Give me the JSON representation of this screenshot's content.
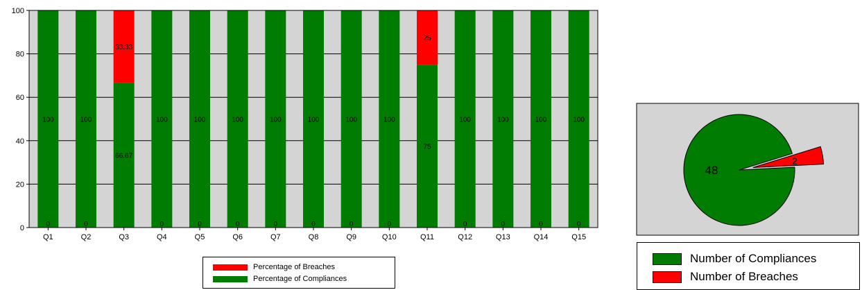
{
  "chart_data": [
    {
      "type": "bar",
      "stacked": true,
      "categories": [
        "Q1",
        "Q2",
        "Q3",
        "Q4",
        "Q5",
        "Q6",
        "Q7",
        "Q8",
        "Q9",
        "Q10",
        "Q11",
        "Q12",
        "Q13",
        "Q14",
        "Q15"
      ],
      "series": [
        {
          "name": "Percentage of Compliances",
          "color": "#007d00",
          "values": [
            100,
            100,
            66.67,
            100,
            100,
            100,
            100,
            100,
            100,
            100,
            75,
            100,
            100,
            100,
            100
          ]
        },
        {
          "name": "Percentage of Breaches",
          "color": "#ff0000",
          "values": [
            0,
            0,
            33.33,
            0,
            0,
            0,
            0,
            0,
            0,
            0,
            25,
            0,
            0,
            0,
            0
          ]
        }
      ],
      "data_labels": {
        "compliances": [
          "100",
          "100",
          "66.67",
          "100",
          "100",
          "100",
          "100",
          "100",
          "100",
          "100",
          "75",
          "100",
          "100",
          "100",
          "100"
        ],
        "breaches": [
          "0",
          "0",
          "33.33",
          "0",
          "0",
          "0",
          "0",
          "0",
          "0",
          "0",
          "25",
          "0",
          "0",
          "0",
          "0"
        ]
      },
      "ylim": [
        0,
        100
      ],
      "yticks": [
        "0",
        "20",
        "40",
        "60",
        "80",
        "100"
      ],
      "grid": true,
      "plot_background": "#d4d4d4",
      "legend": {
        "placement": "bottom-center",
        "entries": [
          "Percentage of Breaches",
          "Percentage of Compliances"
        ]
      }
    },
    {
      "type": "pie",
      "slices": [
        {
          "name": "Number of Compliances",
          "value": 48,
          "label": "48",
          "color": "#007d00"
        },
        {
          "name": "Number of Breaches",
          "value": 2,
          "label": "2",
          "color": "#ff0000",
          "exploded": true
        }
      ],
      "plot_background": "#d4d4d4",
      "legend": {
        "placement": "bottom",
        "entries": [
          "Number of Compliances",
          "Number of Breaches"
        ]
      }
    }
  ]
}
